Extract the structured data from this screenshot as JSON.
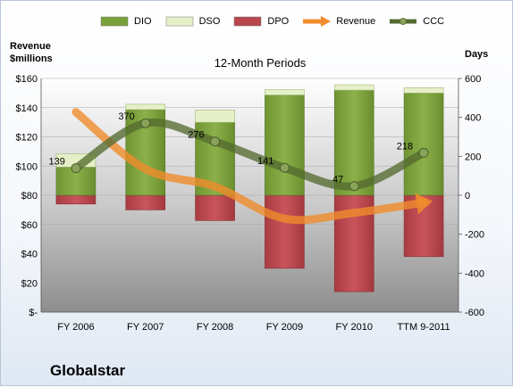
{
  "chart_data": {
    "type": "bar",
    "title": "Globalstar",
    "subtitle": "12-Month Periods",
    "y_left_label": "Revenue\n$millions",
    "y_right_label": "Days",
    "categories": [
      "FY 2006",
      "FY 2007",
      "FY 2008",
      "FY 2009",
      "FY 2010",
      "TTM 9-2011"
    ],
    "y_left_ticks": [
      "$160",
      "$140",
      "$120",
      "$100",
      "$80",
      "$60",
      "$40",
      "$20",
      "$-"
    ],
    "y_left_range": [
      0,
      160
    ],
    "y_right_ticks": [
      "600",
      "400",
      "200",
      "0",
      "-200",
      "-400",
      "-600"
    ],
    "y_right_range": [
      -600,
      600
    ],
    "series": [
      {
        "name": "DIO",
        "color": "#7aa03a",
        "values": [
          0,
          0,
          0,
          0,
          0,
          0
        ]
      },
      {
        "name": "DSO",
        "color": "#e6f0c8",
        "values": [
          0,
          0,
          0,
          0,
          0,
          0
        ]
      },
      {
        "name": "DPO",
        "color": "#b8464c",
        "values": [
          -45,
          -75,
          -130,
          -375,
          -495,
          -315
        ]
      },
      {
        "name": "Revenue",
        "color": "#f08c2c",
        "values": [
          137,
          98,
          86,
          64,
          68,
          75
        ]
      },
      {
        "name": "CCC",
        "color": "#556b2f",
        "values": [
          139,
          370,
          276,
          141,
          47,
          218
        ]
      }
    ],
    "dio_top_days": [
      145,
      440,
      375,
      515,
      540,
      525
    ],
    "dso_top_days": [
      185,
      440,
      410,
      515,
      540,
      525
    ],
    "ccc_labels": [
      "139",
      "370",
      "276",
      "141",
      "47",
      "218"
    ]
  },
  "legend": [
    {
      "label": "DIO",
      "kind": "bar",
      "color": "#7aa03a"
    },
    {
      "label": "DSO",
      "kind": "bar",
      "color": "#e6f0c8"
    },
    {
      "label": "DPO",
      "kind": "bar",
      "color": "#b8464c"
    },
    {
      "label": "Revenue",
      "kind": "arrow",
      "color": "#f08c2c"
    },
    {
      "label": "CCC",
      "kind": "line",
      "color": "#556b2f"
    }
  ]
}
